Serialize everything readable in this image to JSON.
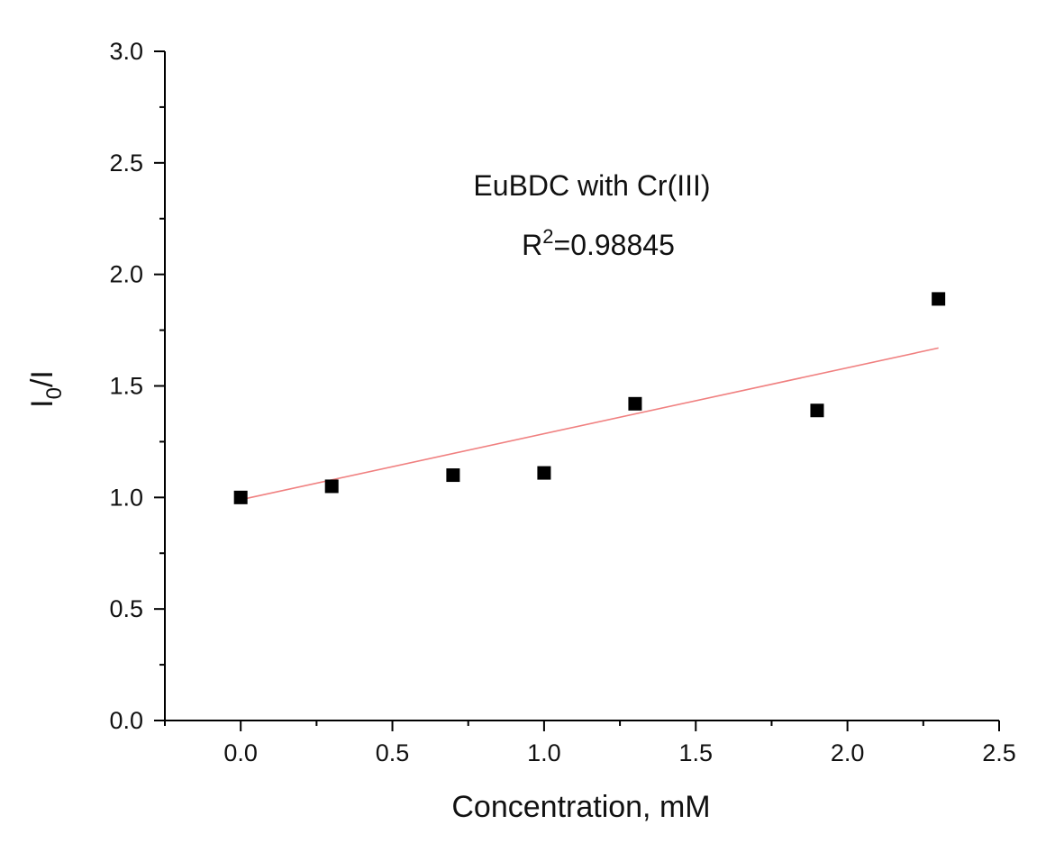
{
  "chart_data": {
    "type": "scatter",
    "xlabel": "Concentration, mM",
    "ylabel_main": "I",
    "ylabel_sub": "0",
    "ylabel_tail": "/I",
    "annotation_title": "EuBDC with Cr(III)",
    "annotation_r_main": "R",
    "annotation_r_sup": "2",
    "annotation_r_tail": "=0.98845",
    "xlim": [
      -0.25,
      2.5
    ],
    "ylim": [
      0.0,
      3.0
    ],
    "x_ticks": [
      "0.0",
      "0.5",
      "1.0",
      "1.5",
      "2.0",
      "2.5"
    ],
    "y_ticks": [
      "0.0",
      "0.5",
      "1.0",
      "1.5",
      "2.0",
      "2.5",
      "3.0"
    ],
    "points": [
      {
        "x": 0.0,
        "y": 1.0
      },
      {
        "x": 0.3,
        "y": 1.05
      },
      {
        "x": 0.7,
        "y": 1.1
      },
      {
        "x": 1.0,
        "y": 1.11
      },
      {
        "x": 1.3,
        "y": 1.42
      },
      {
        "x": 1.9,
        "y": 1.39
      },
      {
        "x": 2.3,
        "y": 1.89
      }
    ],
    "fit_line": {
      "x": [
        0.0,
        2.3
      ],
      "y": [
        0.99,
        1.67
      ]
    },
    "colors": {
      "points": "#000000",
      "fit_line": "#f08080"
    },
    "grid": false,
    "legend": "none"
  }
}
